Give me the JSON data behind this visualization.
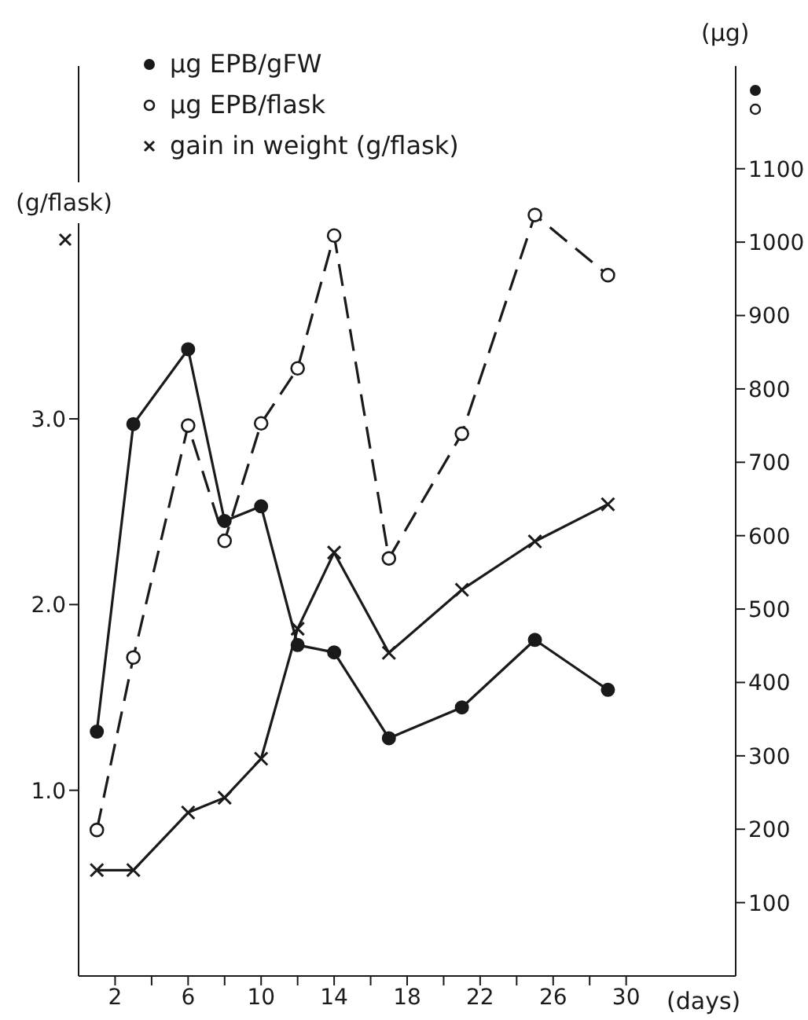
{
  "chart_data": {
    "type": "line",
    "xlabel": "(days)",
    "ylabel": "(g/flask)",
    "y2label": "(µg)",
    "legend": "top left",
    "x": [
      1,
      3,
      6,
      8,
      10,
      12,
      14,
      17,
      21,
      25,
      29
    ],
    "xlim": [
      0,
      36
    ],
    "xticks": [
      2,
      {
        "value": 4,
        "label": null
      },
      6,
      {
        "value": 8,
        "label": null
      },
      10,
      {
        "value": 12,
        "label": null
      },
      14,
      {
        "value": 16,
        "label": null
      },
      18,
      {
        "value": 20,
        "label": null
      },
      22,
      {
        "value": 24,
        "label": null
      },
      26,
      {
        "value": 28,
        "label": null
      },
      30
    ],
    "ylim": [
      0,
      4.9
    ],
    "yticks": [
      {
        "value": 1,
        "label": "1.0"
      },
      {
        "value": 2,
        "label": "2.0"
      },
      {
        "value": 3,
        "label": "3.0"
      }
    ],
    "y2lim": [
      0,
      1240
    ],
    "y2ticks": [
      100,
      200,
      300,
      400,
      500,
      600,
      700,
      800,
      900,
      1000,
      1100
    ],
    "series": [
      {
        "name": "µg EPB/gFW",
        "color": "#1a1a1a",
        "axis": "y2",
        "marker": "circle",
        "line_style": "solid",
        "values": [
          333,
          752,
          854,
          620,
          640,
          451,
          441,
          324,
          366,
          458,
          390
        ]
      },
      {
        "name": "µg EPB/flask",
        "color": "#1a1a1a",
        "axis": "y2",
        "marker": "circle-open",
        "line_style": "dashed",
        "values": [
          199,
          434,
          750,
          593,
          753,
          828,
          1009,
          569,
          739,
          1037,
          955
        ]
      },
      {
        "name": "gain in weight (g/flask)",
        "color": "#1a1a1a",
        "marker": "cross",
        "line_style": "solid",
        "values": [
          0.57,
          0.57,
          0.88,
          0.96,
          1.17,
          1.87,
          2.28,
          1.74,
          2.08,
          2.34,
          2.54
        ]
      }
    ]
  }
}
